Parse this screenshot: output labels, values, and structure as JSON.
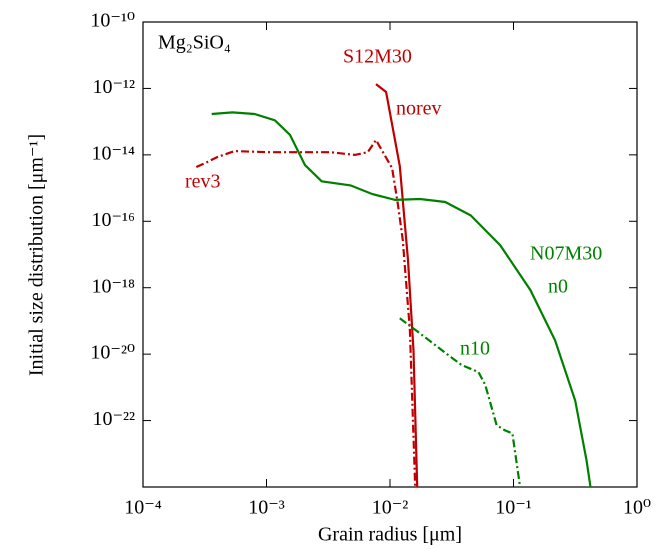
{
  "chart_data": {
    "type": "line",
    "annotations": [
      "Mg₂SiO₄",
      "S12M30",
      "N07M30"
    ],
    "xlabel": "Grain radius [μm]",
    "ylabel": "Initial size distribution [μm⁻¹]",
    "xscale": "log",
    "yscale": "log",
    "xlim": [
      0.0001,
      1
    ],
    "ylim": [
      1e-24,
      1e-10
    ],
    "xticks": [
      {
        "value": 0.0001,
        "label": "10⁻⁴"
      },
      {
        "value": 0.001,
        "label": "10⁻³"
      },
      {
        "value": 0.01,
        "label": "10⁻²"
      },
      {
        "value": 0.1,
        "label": "10⁻¹"
      },
      {
        "value": 1,
        "label": "10⁰"
      }
    ],
    "yticks": [
      {
        "value": 1e-10,
        "label": "10⁻¹⁰"
      },
      {
        "value": 1e-12,
        "label": "10⁻¹²"
      },
      {
        "value": 1e-14,
        "label": "10⁻¹⁴"
      },
      {
        "value": 1e-16,
        "label": "10⁻¹⁶"
      },
      {
        "value": 1e-18,
        "label": "10⁻¹⁸"
      },
      {
        "value": 1e-20,
        "label": "10⁻²⁰"
      },
      {
        "value": 1e-22,
        "label": "10⁻²²"
      }
    ],
    "series": [
      {
        "name": "norev",
        "color": "#c00000",
        "dash": "solid",
        "x": [
          0.0077,
          0.0093,
          0.012,
          0.014,
          0.0155,
          0.0166
        ],
        "values": [
          1.35e-12,
          7.8e-13,
          4.6e-15,
          6.8e-18,
          1.3e-20,
          1e-24
        ]
      },
      {
        "name": "rev3",
        "color": "#c00000",
        "dash": "dashdot",
        "x": [
          0.00027,
          0.00033,
          0.0004,
          0.00055,
          0.00107,
          0.0033,
          0.0052,
          0.0066,
          0.0077,
          0.0091,
          0.0104,
          0.0116,
          0.0127,
          0.0145,
          0.016
        ],
        "values": [
          4.3e-15,
          6e-15,
          8.6e-15,
          1.3e-14,
          1.2e-14,
          1.2e-14,
          1e-14,
          1.2e-14,
          2.8e-14,
          9.5e-15,
          4e-15,
          3.1e-16,
          2.7e-17,
          5.2e-20,
          1e-24
        ]
      },
      {
        "name": "n0",
        "color": "#008000",
        "dash": "solid",
        "x": [
          0.00036,
          0.00053,
          0.0008,
          0.00117,
          0.00155,
          0.00205,
          0.0028,
          0.0048,
          0.0072,
          0.011,
          0.0175,
          0.028,
          0.045,
          0.078,
          0.137,
          0.217,
          0.316,
          0.39,
          0.42
        ],
        "values": [
          1.7e-13,
          1.9e-13,
          1.7e-13,
          1.1e-13,
          4e-14,
          4.9e-15,
          1.6e-15,
          1.2e-15,
          6.6e-16,
          4.4e-16,
          4.7e-16,
          3.8e-16,
          1.5e-16,
          1.9e-17,
          8.5e-19,
          2.6e-20,
          4e-22,
          6.4e-24,
          1e-24
        ]
      },
      {
        "name": "n10",
        "color": "#008000",
        "dash": "dashdot",
        "x": [
          0.012,
          0.0175,
          0.028,
          0.038,
          0.052,
          0.059,
          0.073,
          0.085,
          0.098,
          0.113
        ],
        "values": [
          1.2e-19,
          4.2e-20,
          1.1e-20,
          4.7e-21,
          2.9e-21,
          1.2e-21,
          7.3e-23,
          5.1e-23,
          4.1e-23,
          1e-24
        ]
      }
    ]
  }
}
